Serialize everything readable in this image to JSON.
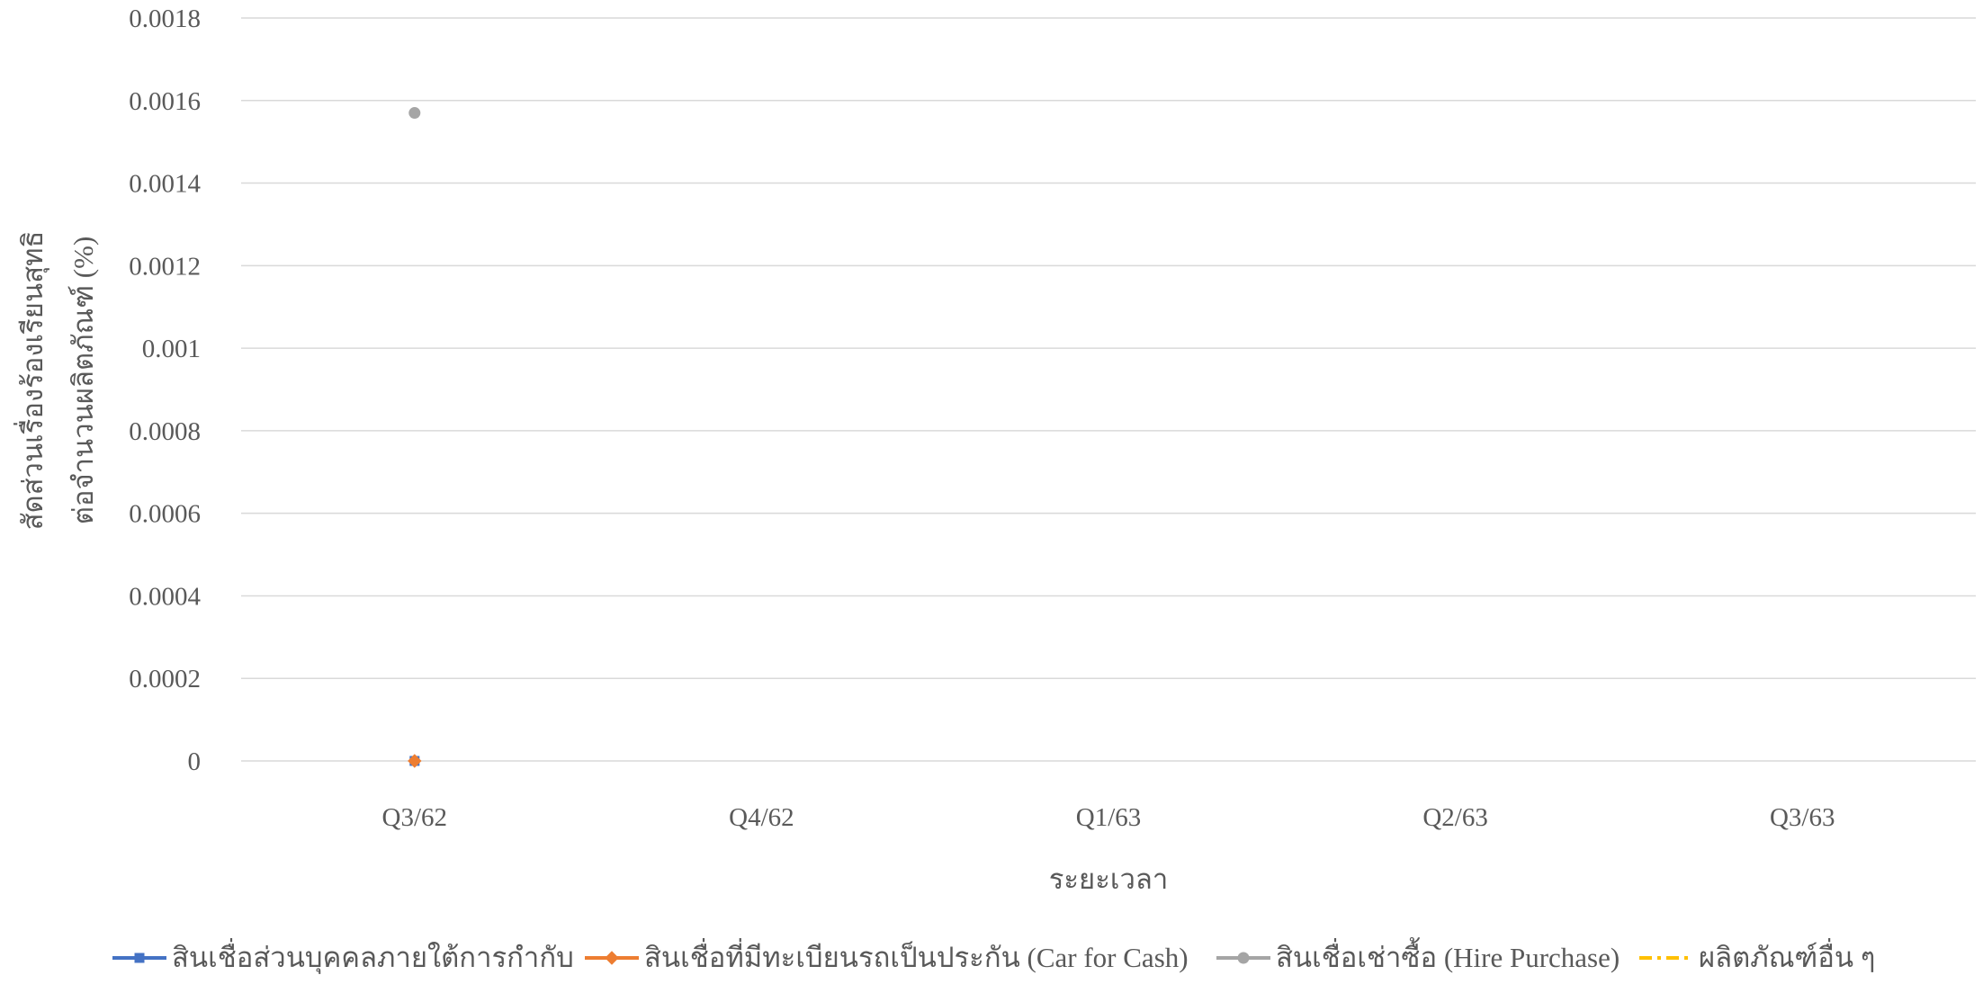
{
  "chart_data": {
    "type": "line",
    "title": "",
    "xlabel": "ระยะเวลา",
    "ylabel_lines": [
      "สัดส่วนเรื่องร้องเรียนสุทธิ",
      "ต่อจำนวนผลิตภัณฑ์ (%)"
    ],
    "categories": [
      "Q3/62",
      "Q4/62",
      "Q1/63",
      "Q2/63",
      "Q3/63"
    ],
    "ylim": [
      0,
      0.0018
    ],
    "yticks": [
      0,
      0.0002,
      0.0004,
      0.0006,
      0.0008,
      0.001,
      0.0012,
      0.0014,
      0.0016,
      0.0018
    ],
    "ytick_labels": [
      "0",
      "0.0002",
      "0.0004",
      "0.0006",
      "0.0008",
      "0.001",
      "0.0012",
      "0.0014",
      "0.0016",
      "0.0018"
    ],
    "grid": true,
    "legend_position": "bottom",
    "series": [
      {
        "name": "สินเชื่อส่วนบุคคลภายใต้การกำกับ",
        "color": "#4472c4",
        "marker": "square",
        "line_style": "solid",
        "values": [
          0,
          null,
          null,
          null,
          null
        ]
      },
      {
        "name": "สินเชื่อที่มีทะเบียนรถเป็นประกัน (Car for Cash)",
        "color": "#ed7d31",
        "marker": "diamond",
        "line_style": "solid",
        "values": [
          0,
          null,
          null,
          null,
          null
        ]
      },
      {
        "name": "สินเชื่อเช่าซื้อ (Hire Purchase)",
        "color": "#a5a5a5",
        "marker": "circle",
        "line_style": "solid",
        "values": [
          0.00157,
          null,
          null,
          null,
          null
        ]
      },
      {
        "name": "ผลิตภัณฑ์อื่น ๆ",
        "color": "#ffc000",
        "marker": "none",
        "line_style": "dashdot",
        "values": [
          0,
          null,
          null,
          null,
          null
        ]
      }
    ]
  }
}
